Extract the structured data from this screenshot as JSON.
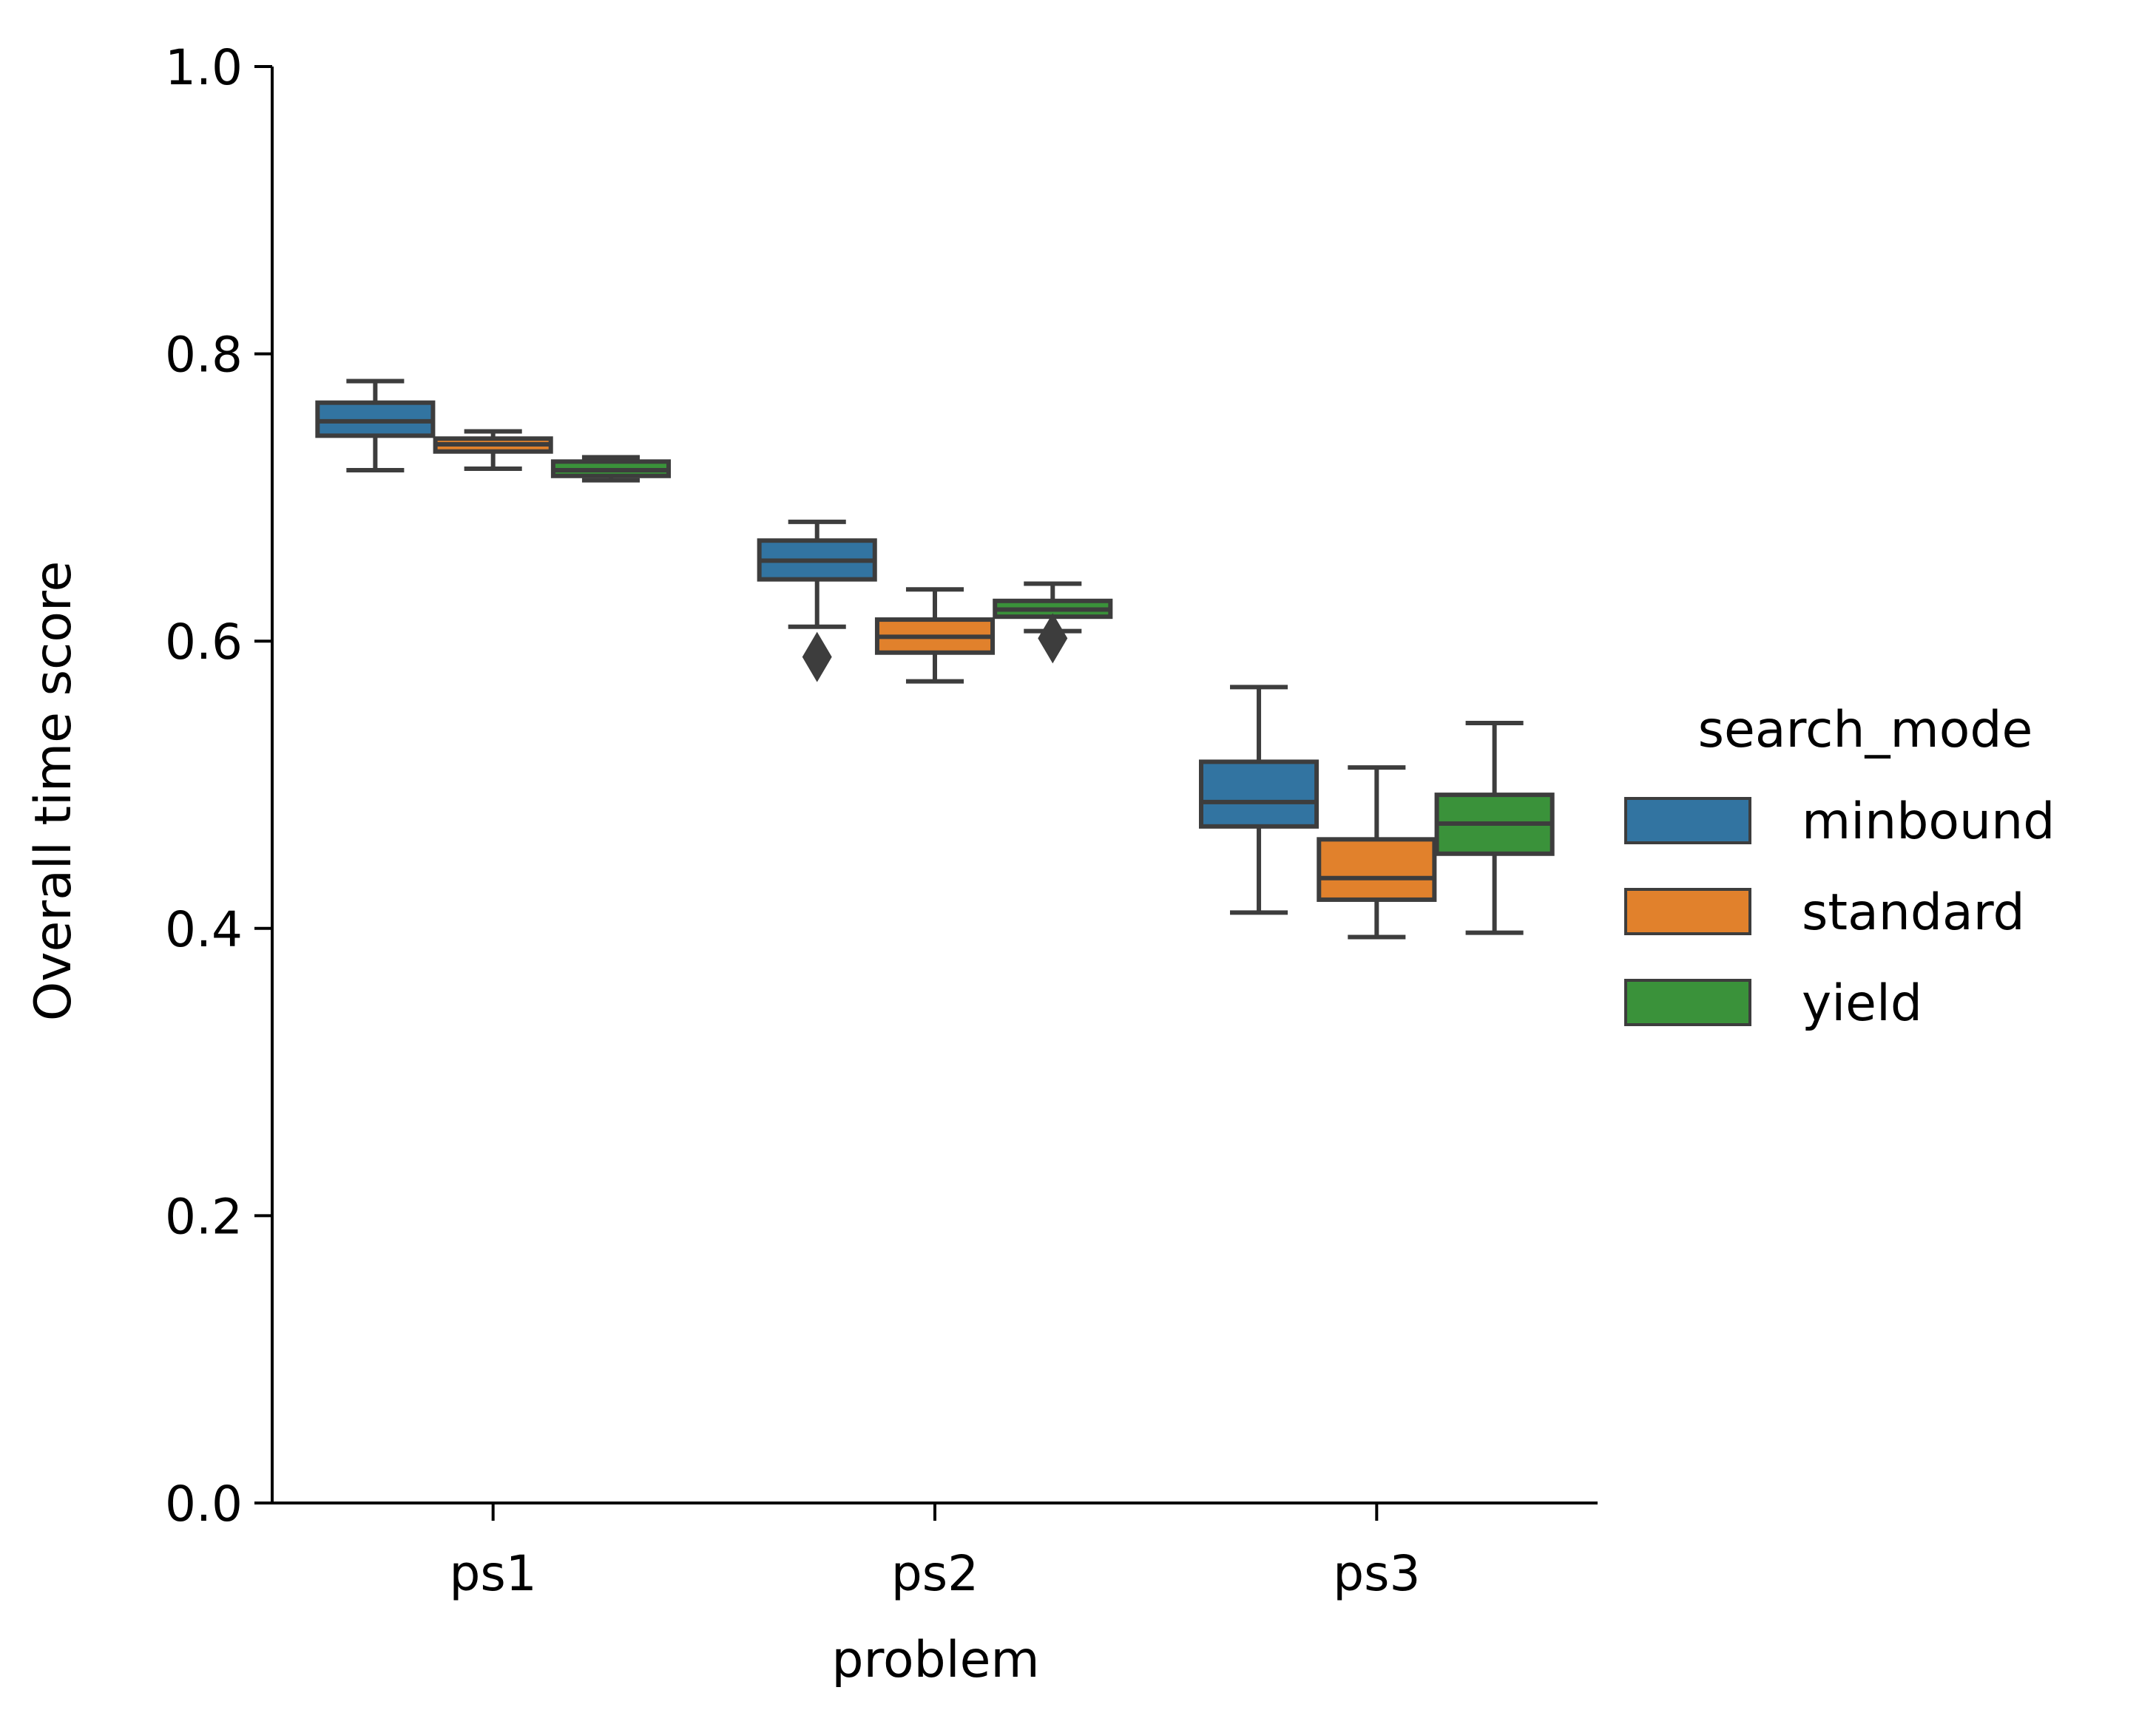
{
  "chart_data": {
    "type": "box",
    "title": "",
    "xlabel": "problem",
    "ylabel": "Overall time score",
    "categories": [
      "ps1",
      "ps2",
      "ps3"
    ],
    "ylim": [
      0.0,
      1.0
    ],
    "yticks": [
      "0.0",
      "0.2",
      "0.4",
      "0.6",
      "0.8",
      "1.0"
    ],
    "grid": false,
    "legend": {
      "title": "search_mode",
      "position": "right",
      "entries": [
        "minbound",
        "standard",
        "yield"
      ]
    },
    "series": [
      {
        "name": "minbound",
        "color": "#3274a1",
        "boxes": [
          {
            "category": "ps1",
            "whisker_low": 0.719,
            "q1": 0.743,
            "median": 0.753,
            "q3": 0.766,
            "whisker_high": 0.781,
            "outliers": []
          },
          {
            "category": "ps2",
            "whisker_low": 0.61,
            "q1": 0.643,
            "median": 0.656,
            "q3": 0.67,
            "whisker_high": 0.683,
            "outliers": [
              0.589
            ]
          },
          {
            "category": "ps3",
            "whisker_low": 0.411,
            "q1": 0.471,
            "median": 0.488,
            "q3": 0.516,
            "whisker_high": 0.568,
            "outliers": []
          }
        ]
      },
      {
        "name": "standard",
        "color": "#e1812c",
        "boxes": [
          {
            "category": "ps1",
            "whisker_low": 0.72,
            "q1": 0.732,
            "median": 0.737,
            "q3": 0.741,
            "whisker_high": 0.746,
            "outliers": []
          },
          {
            "category": "ps2",
            "whisker_low": 0.572,
            "q1": 0.592,
            "median": 0.603,
            "q3": 0.615,
            "whisker_high": 0.636,
            "outliers": []
          },
          {
            "category": "ps3",
            "whisker_low": 0.394,
            "q1": 0.42,
            "median": 0.435,
            "q3": 0.462,
            "whisker_high": 0.512,
            "outliers": []
          }
        ]
      },
      {
        "name": "yield",
        "color": "#3a923a",
        "boxes": [
          {
            "category": "ps1",
            "whisker_low": 0.712,
            "q1": 0.715,
            "median": 0.719,
            "q3": 0.725,
            "whisker_high": 0.728,
            "outliers": []
          },
          {
            "category": "ps2",
            "whisker_low": 0.607,
            "q1": 0.617,
            "median": 0.622,
            "q3": 0.628,
            "whisker_high": 0.64,
            "outliers": [
              0.602
            ]
          },
          {
            "category": "ps3",
            "whisker_low": 0.397,
            "q1": 0.452,
            "median": 0.473,
            "q3": 0.493,
            "whisker_high": 0.543,
            "outliers": []
          }
        ]
      }
    ]
  }
}
